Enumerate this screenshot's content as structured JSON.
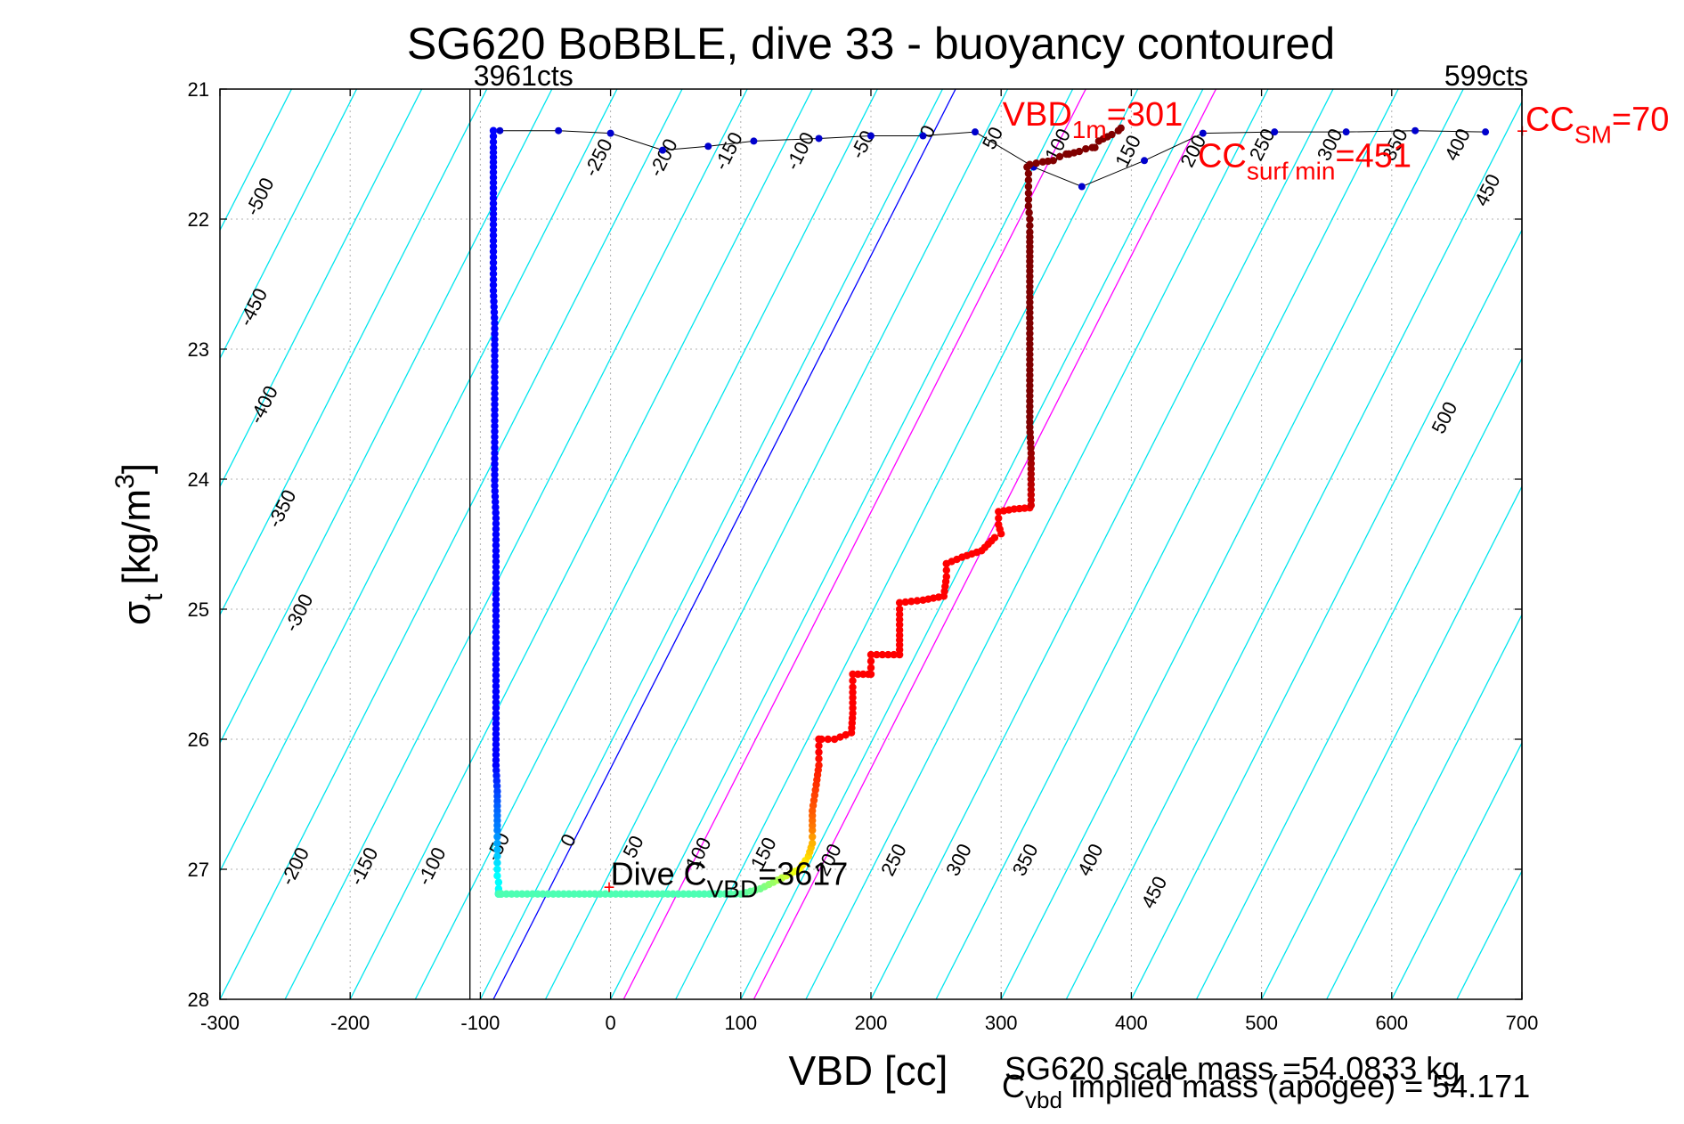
{
  "chart_data": {
    "type": "scatter",
    "title": "SG620 BoBBLE, dive 33 - buoyancy contoured",
    "xlabel": "VBD [cc]",
    "ylabel": {
      "main": "σ",
      "sub": "t",
      "unit": "[kg/m",
      "unit_sup": "3",
      "unit_close": "]"
    },
    "xlim": [
      -300,
      700
    ],
    "ylim": [
      28,
      21
    ],
    "y_reversed": true,
    "grid": true,
    "xticks": [
      -300,
      -200,
      -100,
      0,
      100,
      200,
      300,
      400,
      500,
      600,
      700
    ],
    "yticks": [
      21,
      22,
      23,
      24,
      25,
      26,
      27,
      28
    ],
    "contour_color": "#00e5ee",
    "dive_color_ramp": [
      "#00008f",
      "#0000ff",
      "#0080ff",
      "#00ffff",
      "#80ff80",
      "#ffff00",
      "#ff8000",
      "#ff0000",
      "#800000"
    ],
    "vertical_lines": [
      {
        "x": -108,
        "color": "#000000",
        "label": "3961cts"
      },
      {
        "x": 700,
        "color": "#000000",
        "label": "599cts"
      }
    ],
    "buoyancy_lines": [
      {
        "x_at_28": -90,
        "x_at_21": 265,
        "color": "#0000ff"
      },
      {
        "x_at_28": 10,
        "x_at_21": 365,
        "color": "#ff00ff"
      },
      {
        "x_at_28": 110,
        "x_at_21": 465,
        "color": "#ff00ff"
      }
    ],
    "contour_labels_upper": [
      {
        "text": "-500",
        "x": -265,
        "y": 21.85
      },
      {
        "text": "-450",
        "x": -270,
        "y": 22.7
      },
      {
        "text": "-400",
        "x": -262,
        "y": 23.45
      },
      {
        "text": "-350",
        "x": -248,
        "y": 24.25
      },
      {
        "text": "-300",
        "x": -235,
        "y": 25.05
      },
      {
        "text": "-250",
        "x": -5,
        "y": 21.55
      },
      {
        "text": "-200",
        "x": 45,
        "y": 21.55
      },
      {
        "text": "-150",
        "x": 95,
        "y": 21.5
      },
      {
        "text": "-100",
        "x": 150,
        "y": 21.5
      },
      {
        "text": "-50",
        "x": 198,
        "y": 21.45
      },
      {
        "text": "0",
        "x": 248,
        "y": 21.35
      },
      {
        "text": "50",
        "x": 298,
        "y": 21.4
      },
      {
        "text": "100",
        "x": 348,
        "y": 21.45
      },
      {
        "text": "150",
        "x": 402,
        "y": 21.5
      },
      {
        "text": "200",
        "x": 452,
        "y": 21.5
      },
      {
        "text": "250",
        "x": 505,
        "y": 21.45
      },
      {
        "text": "300",
        "x": 557,
        "y": 21.45
      },
      {
        "text": "350",
        "x": 607,
        "y": 21.45
      },
      {
        "text": "400",
        "x": 655,
        "y": 21.45
      },
      {
        "text": "450",
        "x": 678,
        "y": 21.8
      },
      {
        "text": "500",
        "x": 645,
        "y": 23.55
      }
    ],
    "contour_labels_lower": [
      {
        "text": "-200",
        "x": -238,
        "y": 27.0
      },
      {
        "text": "-150",
        "x": -185,
        "y": 27.0
      },
      {
        "text": "-100",
        "x": -133,
        "y": 27.0
      },
      {
        "text": "-50",
        "x": -82,
        "y": 26.85
      },
      {
        "text": "0",
        "x": -28,
        "y": 26.8
      },
      {
        "text": "50",
        "x": 22,
        "y": 26.85
      },
      {
        "text": "100",
        "x": 72,
        "y": 26.9
      },
      {
        "text": "150",
        "x": 122,
        "y": 26.9
      },
      {
        "text": "200",
        "x": 172,
        "y": 26.95
      },
      {
        "text": "250",
        "x": 222,
        "y": 26.95
      },
      {
        "text": "300",
        "x": 272,
        "y": 26.95
      },
      {
        "text": "350",
        "x": 323,
        "y": 26.95
      },
      {
        "text": "400",
        "x": 373,
        "y": 26.95
      },
      {
        "text": "450",
        "x": 422,
        "y": 27.2
      }
    ],
    "series": [
      {
        "name": "",
        "description_color": "dive",
        "x": [
          -90,
          -90,
          -90,
          -90,
          -90,
          -90,
          -90,
          -89,
          -89,
          -89,
          -89,
          -89,
          -89,
          -88,
          -88,
          -88,
          -88,
          -88,
          -88,
          -88,
          -88,
          -88,
          -87,
          -87,
          -87,
          -87,
          -87,
          -87,
          -87,
          -86,
          -86,
          -86,
          -86,
          -86,
          -86,
          -86,
          -85,
          -85,
          -85,
          -84,
          -84,
          -84,
          -60,
          -40,
          -20,
          0,
          20,
          40,
          60,
          80,
          100,
          115,
          125,
          135,
          145,
          152,
          155,
          155,
          155,
          158,
          160,
          160,
          160,
          160,
          162,
          172,
          185,
          186,
          186,
          186,
          198,
          200,
          200,
          200,
          222,
          222,
          222,
          222,
          240,
          256,
          258,
          258,
          258,
          270,
          285,
          290,
          295,
          300,
          298,
          298,
          298,
          310,
          322,
          323,
          323,
          323,
          322,
          322,
          322,
          322,
          322,
          322,
          322,
          322,
          322,
          322,
          321,
          321,
          321,
          321,
          321,
          320,
          320,
          322,
          332,
          340,
          345,
          350,
          352,
          352,
          360,
          365,
          370,
          372,
          375,
          385,
          390,
          392
        ],
        "y": [
          21.32,
          21.45,
          21.6,
          21.8,
          22.0,
          22.25,
          22.55,
          22.8,
          23.05,
          23.3,
          23.55,
          23.8,
          24.05,
          24.3,
          24.55,
          24.8,
          25.05,
          25.3,
          25.55,
          25.8,
          26.0,
          26.2,
          26.4,
          26.55,
          26.7,
          26.8,
          26.9,
          27.0,
          27.05,
          27.1,
          27.15,
          27.18,
          27.19,
          27.19,
          27.19,
          27.19,
          27.19,
          27.19,
          27.19,
          27.19,
          27.19,
          27.19,
          27.19,
          27.19,
          27.19,
          27.19,
          27.19,
          27.19,
          27.19,
          27.19,
          27.19,
          27.15,
          27.1,
          27.05,
          27.0,
          26.9,
          26.8,
          26.7,
          26.55,
          26.35,
          26.2,
          26.1,
          26.0,
          26.0,
          26.0,
          26.0,
          25.95,
          25.8,
          25.6,
          25.5,
          25.5,
          25.5,
          25.45,
          25.35,
          25.35,
          25.2,
          25.0,
          24.95,
          24.93,
          24.9,
          24.75,
          24.65,
          24.65,
          24.6,
          24.55,
          24.5,
          24.45,
          24.42,
          24.35,
          24.3,
          24.25,
          24.23,
          24.22,
          24.2,
          24.0,
          23.8,
          23.6,
          23.4,
          23.2,
          23.0,
          22.8,
          22.6,
          22.4,
          22.25,
          22.1,
          22.0,
          21.9,
          21.8,
          21.75,
          21.7,
          21.65,
          21.6,
          21.6,
          21.58,
          21.56,
          21.55,
          21.52,
          21.5,
          21.5,
          21.5,
          21.48,
          21.46,
          21.45,
          21.45,
          21.4,
          21.35,
          21.32,
          21.3
        ],
        "ramp_index": [
          1,
          1,
          1,
          1,
          1,
          1,
          1,
          1,
          1,
          1,
          1,
          1,
          1,
          1,
          1,
          1,
          1,
          1,
          1,
          1,
          1,
          1,
          1.5,
          1.8,
          2,
          2.3,
          2.6,
          2.9,
          3,
          3,
          3,
          3.1,
          3.2,
          3.3,
          3.4,
          3.5,
          3.6,
          3.6,
          3.6,
          3.6,
          3.6,
          3.6,
          3.6,
          3.6,
          3.6,
          3.6,
          3.6,
          3.6,
          3.6,
          3.6,
          3.7,
          3.9,
          4.2,
          4.6,
          5,
          5.3,
          5.6,
          6,
          6.3,
          6.6,
          6.8,
          7,
          7,
          7,
          7,
          7,
          7,
          7,
          7,
          7,
          7,
          7,
          7,
          7,
          7,
          7,
          7,
          7,
          7,
          7,
          7,
          7,
          7,
          7,
          7,
          7,
          7,
          7,
          7,
          7,
          7,
          7,
          7,
          7.3,
          7.6,
          7.8,
          8,
          8,
          8,
          8,
          8,
          8,
          8,
          8,
          8,
          8,
          8,
          8,
          8,
          8,
          8,
          8,
          8,
          8,
          8,
          8,
          8,
          8,
          8,
          8,
          8,
          8,
          8,
          8,
          8,
          8,
          8,
          8,
          8,
          8,
          8,
          8,
          8
        ]
      },
      {
        "name": "",
        "description_color": "#0000cd",
        "x": [
          -90,
          -85,
          -40,
          0,
          40,
          75,
          110,
          160,
          200,
          240,
          280,
          325,
          362,
          410,
          455,
          510,
          565,
          618,
          672
        ],
        "y": [
          21.32,
          21.32,
          21.32,
          21.34,
          21.47,
          21.44,
          21.4,
          21.38,
          21.36,
          21.36,
          21.33,
          21.6,
          21.75,
          21.55,
          21.34,
          21.33,
          21.33,
          21.32,
          21.33
        ]
      }
    ],
    "annotations": [
      {
        "id": "vbd1m",
        "text": "VBD",
        "sub": "1m",
        "suffix": "=301",
        "x": 301,
        "y": 21.28,
        "color": "#ff0000"
      },
      {
        "id": "ccsurfmin",
        "text": "CC",
        "sub": "surf min",
        "suffix": "=451",
        "x": 451,
        "y": 21.6,
        "color": "#ff0000"
      },
      {
        "id": "ccsm",
        "text": "CC",
        "sub": "SM",
        "suffix": "=70",
        "x": 700,
        "y": 21.32,
        "color": "#ff0000"
      },
      {
        "id": "divecvbd",
        "text": "Dive C",
        "sub": "VBD",
        "suffix": "=3617",
        "x": 0,
        "y": 27.12,
        "color": "#000000"
      }
    ],
    "footer": {
      "scale_mass": "SG620 scale mass =54.0833 kg",
      "implied_mass_prefix": "C",
      "implied_mass_sub": "vbd",
      "implied_mass_suffix": " implied mass (apogee) = 54.171"
    }
  }
}
